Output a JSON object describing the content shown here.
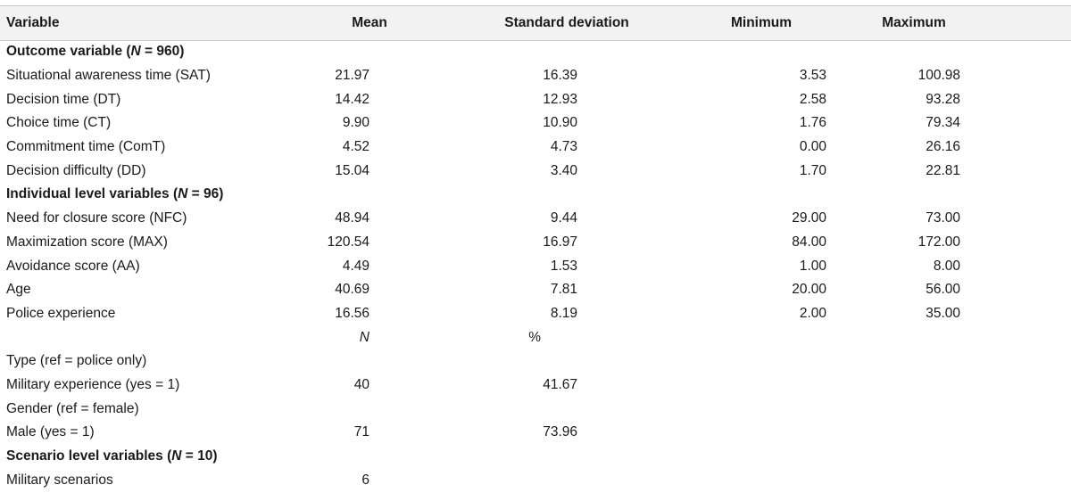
{
  "table": {
    "headers": {
      "variable": "Variable",
      "mean": "Mean",
      "sd": "Standard deviation",
      "min": "Minimum",
      "max": "Maximum"
    },
    "sections": {
      "outcome": {
        "title": "Outcome variable (",
        "n_label": "N",
        "n_value": " = 960)",
        "rows": [
          {
            "variable": "Situational awareness time (SAT)",
            "mean": "21.97",
            "sd": "16.39",
            "min": "3.53",
            "max": "100.98"
          },
          {
            "variable": "Decision time (DT)",
            "mean": "14.42",
            "sd": "12.93",
            "min": "2.58",
            "max": "93.28"
          },
          {
            "variable": "Choice time (CT)",
            "mean": "9.90",
            "sd": "10.90",
            "min": "1.76",
            "max": "79.34"
          },
          {
            "variable": "Commitment time (ComT)",
            "mean": "4.52",
            "sd": "4.73",
            "min": "0.00",
            "max": "26.16"
          },
          {
            "variable": "Decision difficulty (DD)",
            "mean": "15.04",
            "sd": "3.40",
            "min": "1.70",
            "max": "22.81"
          }
        ]
      },
      "individual": {
        "title": "Individual level variables (",
        "n_label": "N",
        "n_value": " = 96)",
        "rows": [
          {
            "variable": "Need for closure score (NFC)",
            "mean": "48.94",
            "sd": "9.44",
            "min": "29.00",
            "max": "73.00"
          },
          {
            "variable": "Maximization score (MAX)",
            "mean": "120.54",
            "sd": "16.97",
            "min": "84.00",
            "max": "172.00"
          },
          {
            "variable": "Avoidance score (AA)",
            "mean": "4.49",
            "sd": "1.53",
            "min": "1.00",
            "max": "8.00"
          },
          {
            "variable": "Age",
            "mean": "40.69",
            "sd": "7.81",
            "min": "20.00",
            "max": "56.00"
          },
          {
            "variable": "Police experience",
            "mean": "16.56",
            "sd": "8.19",
            "min": "2.00",
            "max": "35.00"
          }
        ],
        "subheader": {
          "n": "N",
          "pct": "%"
        },
        "categorical": [
          {
            "variable": "Type (ref = police only)",
            "n": "",
            "pct": ""
          },
          {
            "variable": "Military experience (yes = 1)",
            "n": "40",
            "pct": "41.67"
          },
          {
            "variable": "Gender (ref = female)",
            "n": "",
            "pct": ""
          },
          {
            "variable": "Male (yes = 1)",
            "n": "71",
            "pct": "73.96"
          }
        ]
      },
      "scenario": {
        "title": "Scenario level variables (",
        "n_label": "N",
        "n_value": " = 10)",
        "rows": [
          {
            "variable": "Military scenarios",
            "n": "6"
          }
        ]
      }
    }
  }
}
